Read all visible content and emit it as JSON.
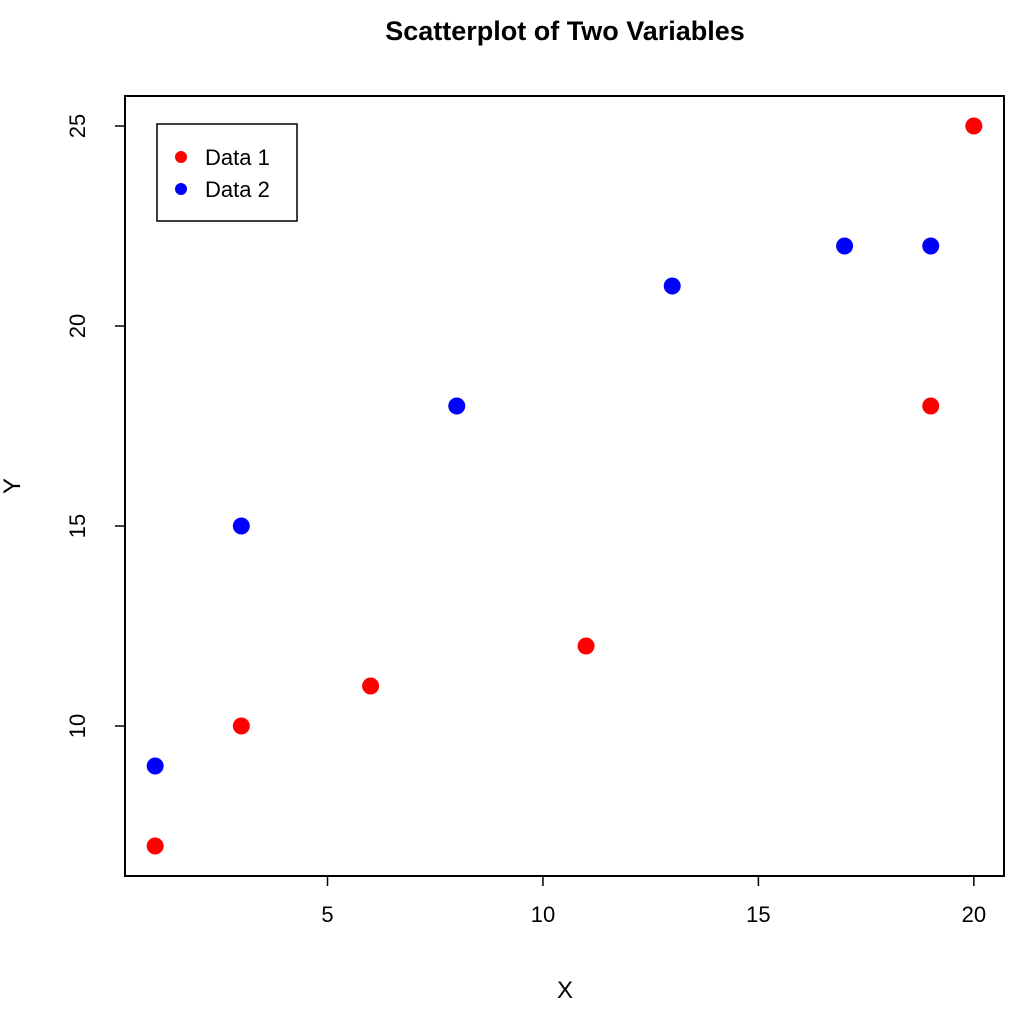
{
  "chart_data": {
    "type": "scatter",
    "title": "Scatterplot of Two Variables",
    "xlabel": "X",
    "ylabel": "Y",
    "xlim": [
      0.3,
      20.7
    ],
    "ylim": [
      6.25,
      25.75
    ],
    "x_ticks": [
      5,
      10,
      15,
      20
    ],
    "y_ticks": [
      10,
      15,
      20,
      25
    ],
    "x_tick_labels": [
      "5",
      "10",
      "15",
      "20"
    ],
    "y_tick_labels": [
      "10",
      "15",
      "20",
      "25"
    ],
    "grid": false,
    "legend_position": "top-left",
    "series": [
      {
        "name": "Data 1",
        "color": "#ff0000",
        "x": [
          1,
          3,
          6,
          11,
          19,
          20
        ],
        "y": [
          7,
          10,
          11,
          12,
          18,
          25
        ]
      },
      {
        "name": "Data 2",
        "color": "#0000ff",
        "x": [
          1,
          3,
          8,
          13,
          17,
          19
        ],
        "y": [
          9,
          15,
          18,
          21,
          22,
          22
        ]
      }
    ]
  }
}
